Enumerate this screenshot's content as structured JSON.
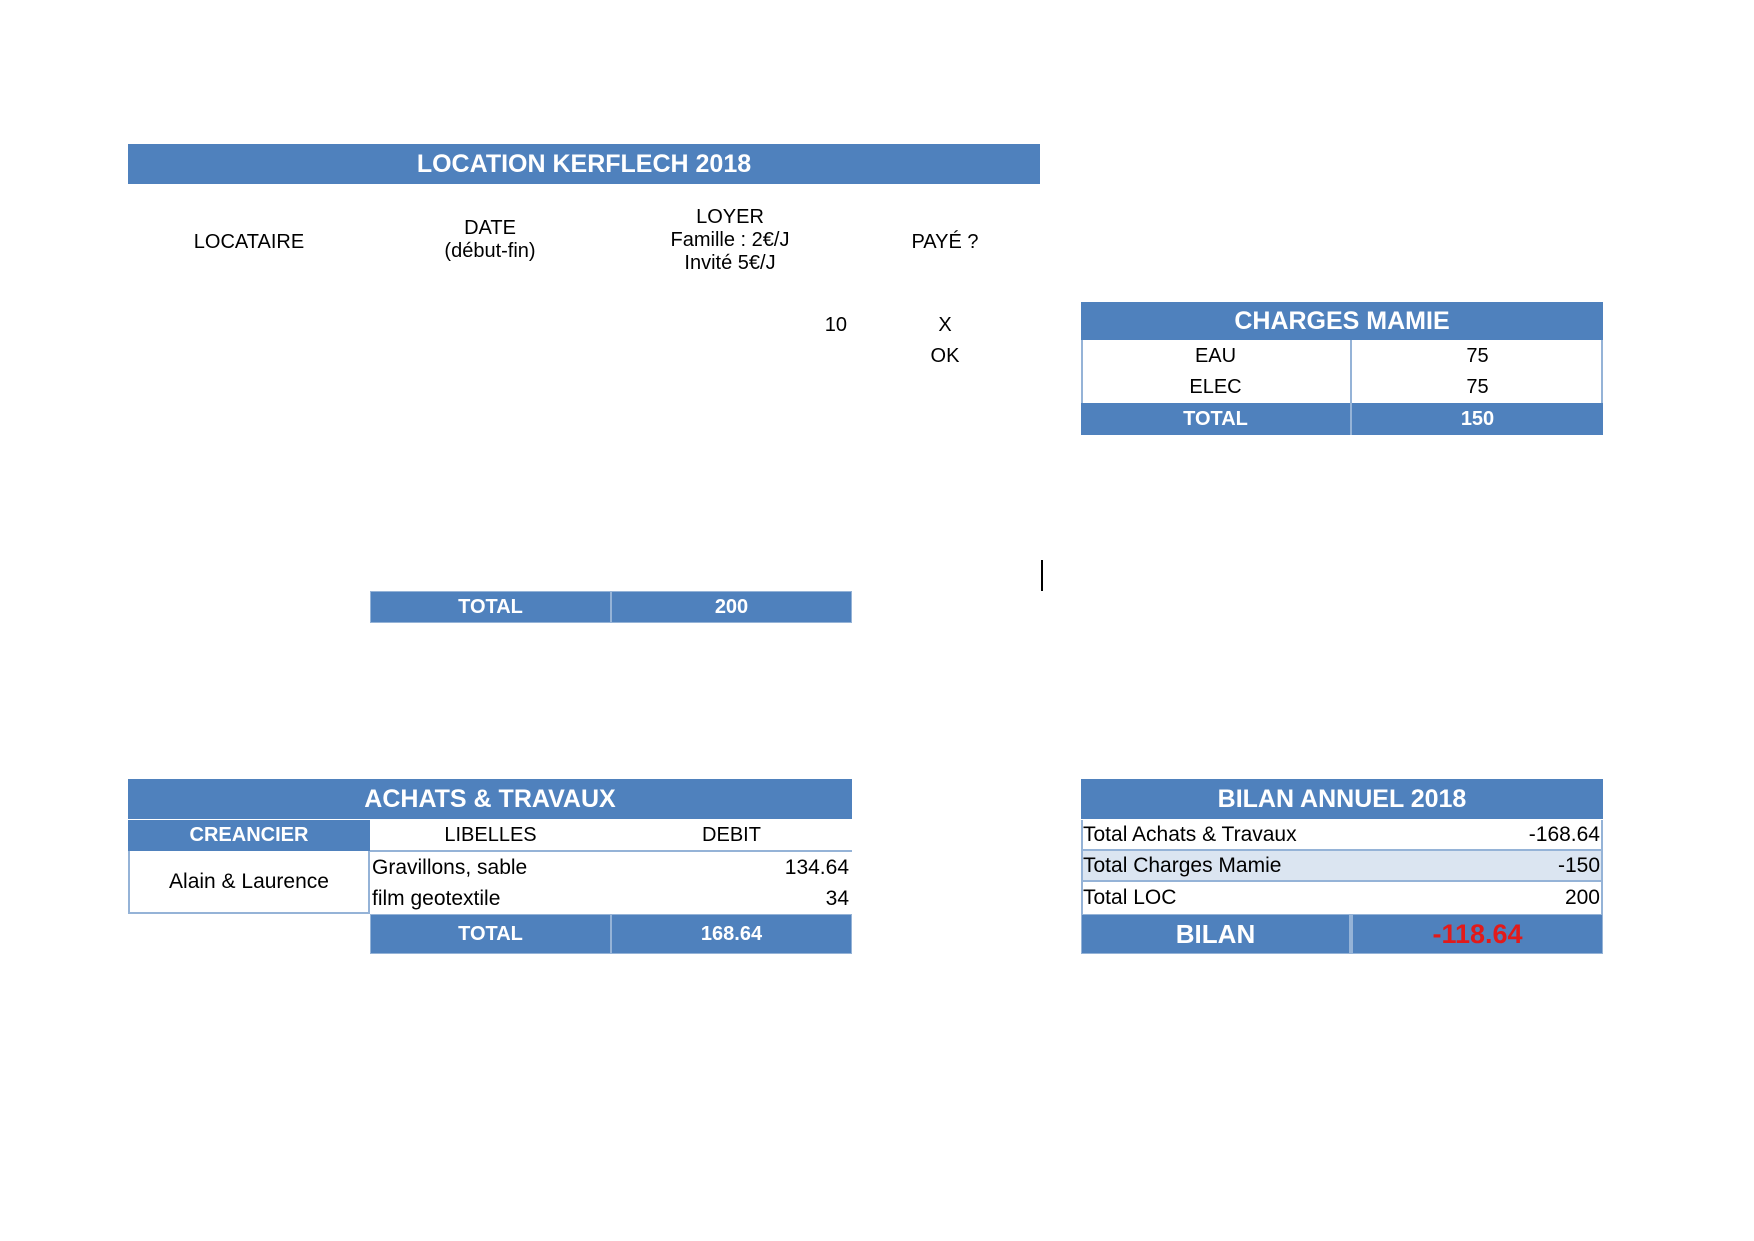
{
  "location": {
    "title": "LOCATION KERFLECH 2018",
    "headers": {
      "locataire": "LOCATAIRE",
      "date_line1": "DATE",
      "date_line2": "(début-fin)",
      "loyer_line1": "LOYER",
      "loyer_line2": "Famille : 2€/J",
      "loyer_line3": "Invité 5€/J",
      "paye": "PAYÉ ?"
    },
    "rows": [
      {
        "loyer": "10",
        "paye": "X"
      },
      {
        "loyer": "",
        "paye": "OK"
      }
    ],
    "total_label": "TOTAL",
    "total_value": "200"
  },
  "charges": {
    "title": "CHARGES MAMIE",
    "rows": [
      {
        "label": "EAU",
        "value": "75"
      },
      {
        "label": "ELEC",
        "value": "75"
      }
    ],
    "total_label": "TOTAL",
    "total_value": "150"
  },
  "achats": {
    "title": "ACHATS & TRAVAUX",
    "headers": {
      "creancier": "CREANCIER",
      "libelles": "LIBELLES",
      "debit": "DEBIT"
    },
    "creancier": "Alain & Laurence",
    "rows": [
      {
        "libelle": "Gravillons, sable",
        "debit": "134.64"
      },
      {
        "libelle": "film geotextile",
        "debit": "34"
      }
    ],
    "total_label": "TOTAL",
    "total_value": "168.64"
  },
  "bilan": {
    "title": "BILAN ANNUEL 2018",
    "rows": [
      {
        "label": "Total Achats & Travaux",
        "value": "-168.64"
      },
      {
        "label": "Total Charges Mamie",
        "value": "-150"
      },
      {
        "label": "Total LOC",
        "value": "200"
      }
    ],
    "result_label": "BILAN",
    "result_value": "-118.64",
    "result_color": "#e21a1a"
  },
  "colors": {
    "header_blue": "#4f81bd",
    "border_blue": "#95b3d7",
    "light_row": "#dbe5f1"
  }
}
